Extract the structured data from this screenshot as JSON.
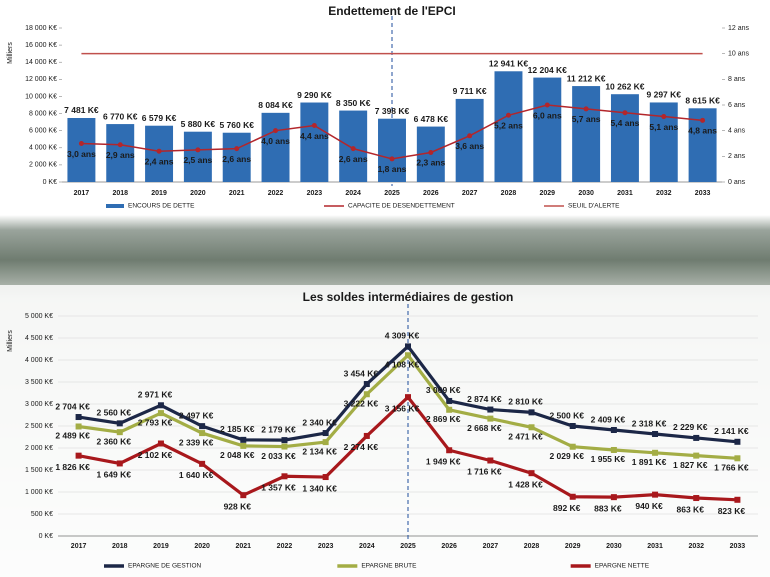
{
  "chart_data": [
    {
      "type": "bar",
      "title": "Endettement de l'EPCI",
      "y_label": "Milliers",
      "grid": false,
      "vline": "2025",
      "categories": [
        "2017",
        "2018",
        "2019",
        "2020",
        "2021",
        "2022",
        "2023",
        "2024",
        "2025",
        "2026",
        "2027",
        "2028",
        "2029",
        "2030",
        "2031",
        "2032",
        "2033"
      ],
      "ylim": [
        0,
        18000
      ],
      "yticks": [
        {
          "value": 0,
          "label": "0 K€"
        },
        {
          "value": 2000,
          "label": "2 000 K€"
        },
        {
          "value": 4000,
          "label": "4 000 K€"
        },
        {
          "value": 6000,
          "label": "6 000 K€"
        },
        {
          "value": 8000,
          "label": "8 000 K€"
        },
        {
          "value": 10000,
          "label": "10 000 K€"
        },
        {
          "value": 12000,
          "label": "12 000 K€"
        },
        {
          "value": 14000,
          "label": "14 000 K€"
        },
        {
          "value": 16000,
          "label": "16 000 K€"
        },
        {
          "value": 18000,
          "label": "18 000 K€"
        }
      ],
      "y2lim": [
        0,
        12
      ],
      "y2ticks": [
        {
          "value": 0,
          "label": "0 ans"
        },
        {
          "value": 2,
          "label": "2 ans"
        },
        {
          "value": 4,
          "label": "4 ans"
        },
        {
          "value": 6,
          "label": "6 ans"
        },
        {
          "value": 8,
          "label": "8 ans"
        },
        {
          "value": 10,
          "label": "10 ans"
        },
        {
          "value": 12,
          "label": "12 ans"
        }
      ],
      "series": [
        {
          "name": "ENCOURS DE DETTE",
          "type": "bar",
          "color": "#2f6db3",
          "values": [
            7481,
            6770,
            6579,
            5880,
            5760,
            8084,
            9290,
            8350,
            7398,
            6478,
            9711,
            12941,
            12204,
            11212,
            10262,
            9297,
            8615
          ],
          "value_labels": [
            "7 481 K€",
            "6 770 K€",
            "6 579 K€",
            "5 880 K€",
            "5 760 K€",
            "8 084 K€",
            "9 290 K€",
            "8 350 K€",
            "7 398 K€",
            "6 478 K€",
            "9 711 K€",
            "12 941 K€",
            "12 204 K€",
            "11 212 K€",
            "10 262 K€",
            "9 297 K€",
            "8 615 K€"
          ]
        },
        {
          "name": "CAPACITE DE DESENDETTEMENT",
          "type": "line",
          "axis": "y2",
          "color": "#b3262b",
          "values": [
            3.0,
            2.9,
            2.4,
            2.5,
            2.6,
            4.0,
            4.4,
            2.6,
            1.8,
            2.3,
            3.6,
            5.2,
            6.0,
            5.7,
            5.4,
            5.1,
            4.8
          ],
          "value_labels": [
            "3,0 ans",
            "2,9 ans",
            "2,4 ans",
            "2,5 ans",
            "2,6 ans",
            "4,0 ans",
            "4,4 ans",
            "2,6 ans",
            "1,8 ans",
            "2,3 ans",
            "3,6 ans",
            "5,2 ans",
            "6,0 ans",
            "5,7 ans",
            "5,4 ans",
            "5,1 ans",
            "4,8 ans"
          ]
        },
        {
          "name": "SEUIL D'ALERTE",
          "type": "line",
          "axis": "y2",
          "color": "#c0504d",
          "values": [
            10,
            10,
            10,
            10,
            10,
            10,
            10,
            10,
            10,
            10,
            10,
            10,
            10,
            10,
            10,
            10,
            10
          ]
        }
      ]
    },
    {
      "type": "line",
      "title": "Les soldes intermédiaires de gestion",
      "y_label": "Milliers",
      "grid": true,
      "vline": "2025",
      "categories": [
        "2017",
        "2018",
        "2019",
        "2020",
        "2021",
        "2022",
        "2023",
        "2024",
        "2025",
        "2026",
        "2027",
        "2028",
        "2029",
        "2030",
        "2031",
        "2032",
        "2033"
      ],
      "ylim": [
        0,
        5000
      ],
      "yticks": [
        {
          "value": 0,
          "label": "0 K€"
        },
        {
          "value": 500,
          "label": "500 K€"
        },
        {
          "value": 1000,
          "label": "1 000 K€"
        },
        {
          "value": 1500,
          "label": "1 500 K€"
        },
        {
          "value": 2000,
          "label": "2 000 K€"
        },
        {
          "value": 2500,
          "label": "2 500 K€"
        },
        {
          "value": 3000,
          "label": "3 000 K€"
        },
        {
          "value": 3500,
          "label": "3 500 K€"
        },
        {
          "value": 4000,
          "label": "4 000 K€"
        },
        {
          "value": 4500,
          "label": "4 500 K€"
        },
        {
          "value": 5000,
          "label": "5 000 K€"
        }
      ],
      "series": [
        {
          "name": "EPARGNE DE GESTION",
          "color": "#1c2747",
          "values": [
            2704,
            2560,
            2971,
            2497,
            2185,
            2179,
            2340,
            3454,
            4309,
            3069,
            2874,
            2810,
            2500,
            2409,
            2318,
            2229,
            2141
          ],
          "value_labels": [
            "2 704 K€",
            "2 560 K€",
            "2 971 K€",
            "2 497 K€",
            "2 185 K€",
            "2 179 K€",
            "2 340 K€",
            "3 454 K€",
            "4 309 K€",
            "3 069 K€",
            "2 874 K€",
            "2 810 K€",
            "2 500 K€",
            "2 409 K€",
            "2 318 K€",
            "2 229 K€",
            "2 141 K€"
          ]
        },
        {
          "name": "EPARGNE BRUTE",
          "color": "#a3ad45",
          "values": [
            2489,
            2360,
            2793,
            2339,
            2048,
            2033,
            2134,
            3222,
            4108,
            2869,
            2668,
            2471,
            2029,
            1955,
            1891,
            1827,
            1766
          ],
          "value_labels": [
            "2 489 K€",
            "2 360 K€",
            "2 793 K€",
            "2 339 K€",
            "2 048 K€",
            "2 033 K€",
            "2 134 K€",
            "3 222 K€",
            "4 108 K€",
            "2 869 K€",
            "2 668 K€",
            "2 471 K€",
            "2 029 K€",
            "1 955 K€",
            "1 891 K€",
            "1 827 K€",
            "1 766 K€"
          ]
        },
        {
          "name": "EPARGNE NETTE",
          "color": "#a8181c",
          "values": [
            1826,
            1649,
            2102,
            1640,
            928,
            1357,
            1340,
            2274,
            3156,
            1949,
            1716,
            1428,
            892,
            883,
            940,
            863,
            823
          ],
          "value_labels": [
            "1 826 K€",
            "1 649 K€",
            "2 102 K€",
            "1 640 K€",
            "928 K€",
            "1 357 K€",
            "1 340 K€",
            "2 274 K€",
            "3 156 K€",
            "1 949 K€",
            "1 716 K€",
            "1 428 K€",
            "892 K€",
            "883 K€",
            "940 K€",
            "863 K€",
            "823 K€"
          ]
        }
      ]
    }
  ]
}
